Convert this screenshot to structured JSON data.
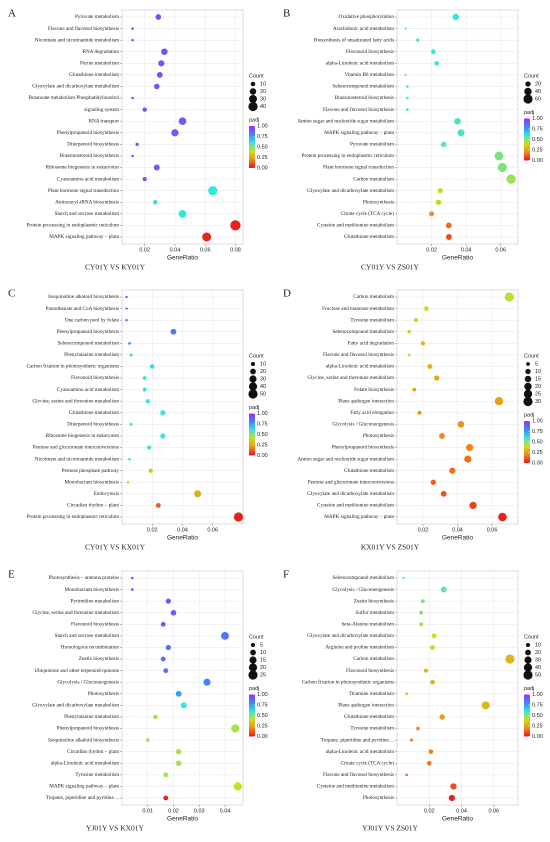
{
  "chart_data": [
    {
      "type": "scatter",
      "label": "A",
      "title": "CY01Y VS KY01Y",
      "xlabel": "GeneRatio",
      "categories": [
        "Pyruvate metabolism",
        "Flavone and flavonol biosynthesis",
        "Nicotinate and nicotinamide metabolism",
        "RNA degradation",
        "Purine metabolism",
        "Glutathione metabolism",
        "Glyoxylate and dicarboxylate metabolism",
        "Butanoate metabolism Phosphatidylinositol",
        "signaling system",
        "RNA transport",
        "Phenylpropanoid biosynthesis",
        "Diterpenoid biosynthesis",
        "Brassinosteroid biosynthesis",
        "Ribosome biogenesis in eukaryotes",
        "Cyanoamino acid metabolism",
        "Plant hormone signal transduction",
        "Aminoacyl-tRNA biosynthesis",
        "Starch and sucrose metabolism",
        "Protein processing in endoplasmic reticulum",
        "MAPK signaling pathway – plant"
      ],
      "x": [
        0.029,
        0.012,
        0.012,
        0.033,
        0.031,
        0.03,
        0.028,
        0.012,
        0.02,
        0.045,
        0.04,
        0.015,
        0.012,
        0.028,
        0.02,
        0.065,
        0.027,
        0.045,
        0.08,
        0.061
      ],
      "size": [
        15,
        3,
        3,
        20,
        18,
        16,
        14,
        3,
        9,
        28,
        25,
        5,
        3,
        17,
        8,
        40,
        10,
        28,
        50,
        38
      ],
      "padj": [
        0.93,
        0.95,
        0.95,
        0.92,
        0.92,
        0.92,
        0.92,
        0.95,
        0.93,
        0.9,
        0.9,
        0.93,
        0.95,
        0.9,
        0.92,
        0.6,
        0.6,
        0.6,
        0.02,
        0.03
      ],
      "xlim": [
        0.005,
        0.085
      ],
      "xticks": [
        0.02,
        0.04,
        0.06,
        0.08
      ],
      "size_title": "Count",
      "size_ticks": [
        10,
        20,
        30,
        40
      ],
      "color_title": "padj",
      "color_ticks": [
        {
          "value": 0,
          "label": "0.00"
        },
        0.25,
        {
          "value": 0.5,
          "label": "0.50"
        },
        0.75,
        {
          "value": 1,
          "label": "1.00"
        }
      ],
      "colorscale": [
        "#e8141c",
        "#f28a1a",
        "#c8e020",
        "#36e6d8",
        "#3a86ff",
        "#9b30f5"
      ],
      "grid": true
    },
    {
      "type": "scatter",
      "label": "B",
      "title": "CY01Y VS ZS01Y",
      "xlabel": "GeneRatio",
      "categories": [
        "Oxidative phosphorylation",
        "Arachidonic acid metabolism",
        "Biosynthesis of unsaturated fatty acids",
        "Flavonoid biosynthesis",
        "alpha-Linolenic acid metabolism",
        "Vitamin B6 metabolism",
        "Selenocompound metabolism",
        "Brassinosteroid biosynthesis",
        "Flavone and flavonol biosynthesis",
        "Amino sugar and nucleotide sugar metabolism",
        "MAPK signaling pathway – plant",
        "Pyruvate metabolism",
        "Protein processing in endoplasmic reticulum",
        "Plant hormone signal transduction",
        "Carbon metabolism",
        "Glyoxylate and dicarboxylate metabolism",
        "Photosynthesis",
        "Citrate cycle (TCA cycle)",
        "Cysteine and methionine metabolism",
        "Glutathione metabolism"
      ],
      "x": [
        0.034,
        0.005,
        0.012,
        0.021,
        0.023,
        0.005,
        0.006,
        0.006,
        0.006,
        0.035,
        0.037,
        0.027,
        0.059,
        0.061,
        0.066,
        0.025,
        0.024,
        0.02,
        0.03,
        0.03
      ],
      "size": [
        30,
        3,
        8,
        15,
        15,
        3,
        5,
        5,
        5,
        30,
        35,
        22,
        55,
        60,
        62,
        20,
        20,
        18,
        25,
        25
      ],
      "padj": [
        0.6,
        0.62,
        0.6,
        0.6,
        0.6,
        0.62,
        0.6,
        0.6,
        0.6,
        0.58,
        0.58,
        0.55,
        0.5,
        0.5,
        0.46,
        0.38,
        0.38,
        0.22,
        0.15,
        0.1
      ],
      "xlim": [
        0,
        0.07
      ],
      "xticks": [
        0.02,
        0.04,
        0.06
      ],
      "size_title": "Count",
      "size_ticks": [
        20,
        40,
        60
      ],
      "color_title": "padj",
      "color_ticks": [
        {
          "value": 0,
          "label": "0.00"
        },
        0.25,
        {
          "value": 0.5,
          "label": "0.50"
        },
        0.75,
        {
          "value": 1,
          "label": "1.00"
        }
      ],
      "colorscale": [
        "#e8141c",
        "#f28a1a",
        "#c8e020",
        "#36e6d8",
        "#3a86ff",
        "#9b30f5"
      ],
      "grid": true
    },
    {
      "type": "scatter",
      "label": "C",
      "title": "CY01Y VS KX01Y",
      "xlabel": "GeneRatio",
      "categories": [
        "Isoquinoline alkaloid biosynthesis",
        "Pantothenate and CoA biosynthesis",
        "One carbon pool by folate",
        "Phenylpropanoid biosynthesis",
        "Selenocompound metabolism",
        "Phenylalanine metabolism",
        "Carbon fixation in photosynthetic organisms",
        "Flavonoid biosynthesis",
        "Cyanoamino acid metabolism",
        "Glycine, serine and threonine metabolism",
        "Glutathione metabolism",
        "Diterpenoid biosynthesis",
        "Ribosome biogenesis in eukaryotes",
        "Pentose and glucuronate interconversions",
        "Nicotinate and nicotinamide metabolism",
        "Pentose phosphate pathway",
        "Monobactam biosynthesis",
        "Endocytosis",
        "Circadian rhythm – plant",
        "Protein processing in endoplasmic reticulum"
      ],
      "x": [
        0.003,
        0.003,
        0.003,
        0.034,
        0.005,
        0.006,
        0.02,
        0.015,
        0.015,
        0.017,
        0.027,
        0.006,
        0.027,
        0.018,
        0.005,
        0.019,
        0.004,
        0.05,
        0.024,
        0.077
      ],
      "size": [
        3,
        3,
        3,
        20,
        4,
        5,
        12,
        9,
        9,
        10,
        16,
        5,
        16,
        11,
        4,
        11,
        3,
        30,
        14,
        50
      ],
      "padj": [
        0.97,
        0.97,
        0.97,
        0.85,
        0.8,
        0.65,
        0.62,
        0.6,
        0.6,
        0.6,
        0.6,
        0.6,
        0.6,
        0.6,
        0.6,
        0.35,
        0.3,
        0.28,
        0.12,
        0.02
      ],
      "xlim": [
        0,
        0.08
      ],
      "xticks": [
        0.02,
        0.04,
        0.06
      ],
      "size_title": "Count",
      "size_ticks": [
        10,
        20,
        30,
        40,
        50
      ],
      "color_title": "padj",
      "color_ticks": [
        {
          "value": 0,
          "label": "0.00"
        },
        0.25,
        {
          "value": 0.5,
          "label": "0.50"
        },
        0.75,
        {
          "value": 1,
          "label": "1.00"
        }
      ],
      "colorscale": [
        "#e8141c",
        "#f28a1a",
        "#c8e020",
        "#36e6d8",
        "#3a86ff",
        "#9b30f5"
      ],
      "grid": true
    },
    {
      "type": "scatter",
      "label": "D",
      "title": "KX01Y VS ZS01Y",
      "xlabel": "GeneRatio",
      "categories": [
        "Carbon metabolism",
        "Fructose and mannose metabolism",
        "Tyrosine metabolism",
        "Selenocompound metabolism",
        "Fatty acid degradation",
        "Flavone and flavonol biosynthesis",
        "alpha-Linolenic acid metabolism",
        "Glycine, serine and threonine metabolism",
        "Folate biosynthesis",
        "Plant–pathogen interaction",
        "Fatty acid elongation",
        "Glycolysis / Gluconeogenesis",
        "Photosynthesis",
        "Phenylpropanoid biosynthesis",
        "Amino sugar and nucleotide sugar metabolism",
        "Glutathione metabolism",
        "Pentose and glucuronate interconversions",
        "Glyoxylate and dicarboxylate metabolism",
        "Cysteine and methionine metabolism",
        "MAPK signaling pathway – plant"
      ],
      "x": [
        0.07,
        0.022,
        0.016,
        0.012,
        0.02,
        0.012,
        0.024,
        0.028,
        0.015,
        0.064,
        0.018,
        0.042,
        0.031,
        0.047,
        0.046,
        0.037,
        0.026,
        0.032,
        0.049,
        0.066
      ],
      "size": [
        30,
        8,
        6,
        4,
        7,
        3,
        9,
        10,
        5,
        25,
        6,
        16,
        12,
        18,
        18,
        14,
        10,
        12,
        19,
        26
      ],
      "padj": [
        0.42,
        0.4,
        0.36,
        0.35,
        0.3,
        0.4,
        0.3,
        0.28,
        0.25,
        0.25,
        0.22,
        0.22,
        0.2,
        0.18,
        0.15,
        0.15,
        0.12,
        0.1,
        0.08,
        0.02
      ],
      "xlim": [
        0.005,
        0.075
      ],
      "xticks": [
        0.02,
        0.04,
        0.06
      ],
      "size_title": "Count",
      "size_ticks": [
        5,
        10,
        15,
        20,
        25,
        30
      ],
      "color_title": "padj",
      "color_ticks": [
        {
          "value": 0,
          "label": "0.00"
        },
        0.25,
        {
          "value": 0.5,
          "label": "0.50"
        },
        0.75,
        {
          "value": 1,
          "label": "1.00"
        }
      ],
      "colorscale": [
        "#e8141c",
        "#f28a1a",
        "#c8e020",
        "#36e6d8",
        "#3a86ff",
        "#9b30f5"
      ],
      "grid": true
    },
    {
      "type": "scatter",
      "label": "E",
      "title": "YJ01Y VS KX01Y",
      "xlabel": "GeneRatio",
      "categories": [
        "Photosynthesis – antenna proteins",
        "Monobactam biosynthesis",
        "Pyrimidine metabolism",
        "Glycine, serine and threonine metabolism",
        "Flavonoid biosynthesis",
        "Starch and sucrose metabolism",
        "Homologous recombination",
        "Zeatin biosynthesis",
        "Ubiquinone and other terpenoid-quinone",
        "Glycolysis / Gluconeogenesis",
        "Photosynthesis",
        "Glyoxylate and dicarboxylate metabolism",
        "Phenylalanine metabolism",
        "Phenylpropanoid biosynthesis",
        "Isoquinoline alkaloid biosynthesis",
        "Circadian rhythm – plant",
        "alpha-Linolenic acid metabolism",
        "Tyrosine metabolism",
        "MAPK signaling pathway – plant",
        "Tropane, piperidine and pyridine ..."
      ],
      "x": [
        0.004,
        0.004,
        0.018,
        0.02,
        0.016,
        0.04,
        0.018,
        0.016,
        0.017,
        0.033,
        0.022,
        0.024,
        0.013,
        0.044,
        0.01,
        0.022,
        0.022,
        0.017,
        0.045,
        0.017
      ],
      "size": [
        2,
        2,
        8,
        9,
        7,
        18,
        8,
        7,
        7,
        15,
        10,
        11,
        6,
        20,
        4,
        9,
        9,
        7,
        20,
        7
      ],
      "padj": [
        0.95,
        0.95,
        0.9,
        0.9,
        0.88,
        0.85,
        0.85,
        0.85,
        0.85,
        0.8,
        0.75,
        0.6,
        0.45,
        0.45,
        0.45,
        0.45,
        0.45,
        0.45,
        0.4,
        0.02
      ],
      "xlim": [
        0,
        0.047
      ],
      "xticks": [
        0.01,
        0.02,
        0.03,
        0.04
      ],
      "size_title": "Count",
      "size_ticks": [
        5,
        10,
        15,
        20,
        25
      ],
      "color_title": "padj",
      "color_ticks": [
        {
          "value": 0,
          "label": "0.00"
        },
        0.25,
        {
          "value": 0.5,
          "label": "0.50"
        },
        0.75,
        {
          "value": 1,
          "label": "1.00"
        }
      ],
      "colorscale": [
        "#e8141c",
        "#f28a1a",
        "#c8e020",
        "#36e6d8",
        "#3a86ff",
        "#9b30f5"
      ],
      "grid": true
    },
    {
      "type": "scatter",
      "label": "F",
      "title": "YJ01Y VS ZS01Y",
      "xlabel": "GeneRatio",
      "categories": [
        "Selenocompound metabolism",
        "Glycolysis / Gluconeogenesis",
        "Zeatin biosynthesis",
        "Sulfur metabolism",
        "beta-Alanine metabolism",
        "Glyoxylate and dicarboxylate metabolism",
        "Arginine and proline metabolism",
        "Carbon metabolism",
        "Flavonoid biosynthesis",
        "Carbon fixation in photosynthetic organisms",
        "Thiamine metabolism",
        "Plant–pathogen interaction",
        "Glutathione metabolism",
        "Tyrosine metabolism",
        "Tropane, piperidine and pyridine ...",
        "alpha-Linolenic acid metabolism",
        "Citrate cycle (TCA cycle)",
        "Flavone and flavonol biosynthesis",
        "Cysteine and methionine metabolism",
        "Photosynthesis"
      ],
      "x": [
        0.004,
        0.029,
        0.016,
        0.015,
        0.015,
        0.023,
        0.022,
        0.07,
        0.018,
        0.022,
        0.006,
        0.055,
        0.028,
        0.013,
        0.009,
        0.021,
        0.02,
        0.006,
        0.035,
        0.034
      ],
      "size": [
        3,
        20,
        9,
        9,
        9,
        14,
        13,
        50,
        10,
        13,
        4,
        38,
        18,
        8,
        6,
        13,
        12,
        4,
        24,
        23
      ],
      "padj": [
        0.6,
        0.55,
        0.5,
        0.5,
        0.45,
        0.4,
        0.35,
        0.3,
        0.3,
        0.3,
        0.3,
        0.3,
        0.25,
        0.2,
        0.2,
        0.18,
        0.15,
        0.15,
        0.1,
        0.02
      ],
      "xlim": [
        0,
        0.075
      ],
      "xticks": [
        0.02,
        0.04,
        0.06
      ],
      "size_title": "Count",
      "size_ticks": [
        10,
        20,
        30,
        40,
        50
      ],
      "color_title": "padj",
      "color_ticks": [
        {
          "value": 0,
          "label": "0.00"
        },
        0.25,
        {
          "value": 0.5,
          "label": "0.50"
        },
        0.75,
        {
          "value": 1,
          "label": "1.00"
        }
      ],
      "colorscale": [
        "#e8141c",
        "#f28a1a",
        "#c8e020",
        "#36e6d8",
        "#3a86ff",
        "#9b30f5"
      ],
      "grid": true
    }
  ]
}
